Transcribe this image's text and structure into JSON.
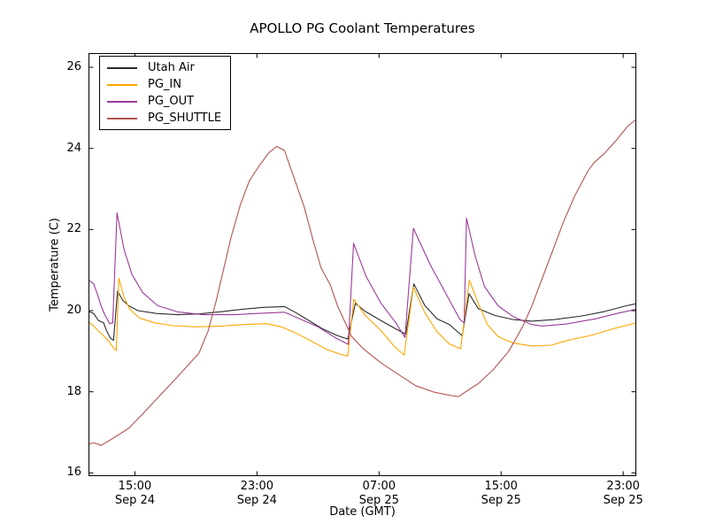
{
  "figure": {
    "title": "APOLLO PG Coolant Temperatures",
    "xlabel": "Date (GMT)",
    "ylabel": "Temperature (C)"
  },
  "chart_data": {
    "type": "line",
    "title": "APOLLO PG Coolant Temperatures",
    "xlabel": "Date (GMT)",
    "ylabel": "Temperature (C)",
    "x_unit": "hours_since_Sep24_0000_GMT",
    "xlim": [
      11.96,
      47.86
    ],
    "ylim": [
      15.92,
      26.35
    ],
    "grid": false,
    "legend_position": "upper left",
    "frame_color": "#000000",
    "x_ticks": [
      {
        "t": 15,
        "time": "15:00",
        "date": "Sep 24"
      },
      {
        "t": 23,
        "time": "23:00",
        "date": "Sep 24"
      },
      {
        "t": 31,
        "time": "07:00",
        "date": "Sep 25"
      },
      {
        "t": 39,
        "time": "15:00",
        "date": "Sep 25"
      },
      {
        "t": 47,
        "time": "23:00",
        "date": "Sep 25"
      }
    ],
    "y_ticks": [
      16,
      18,
      20,
      22,
      24,
      26
    ],
    "series": [
      {
        "name": "Utah Air",
        "color": "#2b2b2b",
        "points": [
          [
            11.96,
            19.98
          ],
          [
            12.3,
            19.93
          ],
          [
            12.6,
            19.76
          ],
          [
            12.95,
            19.7
          ],
          [
            13.15,
            19.5
          ],
          [
            13.4,
            19.32
          ],
          [
            13.6,
            19.27
          ],
          [
            13.86,
            20.48
          ],
          [
            14.2,
            20.26
          ],
          [
            14.6,
            20.12
          ],
          [
            15.2,
            20.0
          ],
          [
            16.4,
            19.93
          ],
          [
            17.8,
            19.9
          ],
          [
            19.2,
            19.92
          ],
          [
            20.8,
            19.98
          ],
          [
            22.2,
            20.04
          ],
          [
            23.4,
            20.08
          ],
          [
            24.8,
            20.1
          ],
          [
            25.5,
            19.96
          ],
          [
            26.3,
            19.78
          ],
          [
            27.3,
            19.55
          ],
          [
            28.3,
            19.38
          ],
          [
            28.95,
            19.3
          ],
          [
            29.45,
            20.18
          ],
          [
            30.1,
            19.98
          ],
          [
            31.1,
            19.76
          ],
          [
            32.1,
            19.55
          ],
          [
            32.75,
            19.42
          ],
          [
            33.28,
            20.66
          ],
          [
            34.0,
            20.13
          ],
          [
            34.8,
            19.8
          ],
          [
            35.6,
            19.66
          ],
          [
            36.45,
            19.38
          ],
          [
            36.9,
            20.42
          ],
          [
            37.5,
            20.05
          ],
          [
            38.6,
            19.88
          ],
          [
            39.8,
            19.78
          ],
          [
            41.0,
            19.74
          ],
          [
            42.5,
            19.78
          ],
          [
            44.3,
            19.87
          ],
          [
            45.8,
            19.98
          ],
          [
            47.2,
            20.12
          ],
          [
            47.86,
            20.17
          ]
        ]
      },
      {
        "name": "PG_IN",
        "color": "#ffa500",
        "points": [
          [
            11.96,
            19.73
          ],
          [
            12.3,
            19.62
          ],
          [
            12.6,
            19.5
          ],
          [
            12.95,
            19.38
          ],
          [
            13.3,
            19.24
          ],
          [
            13.6,
            19.08
          ],
          [
            13.78,
            19.02
          ],
          [
            13.95,
            20.8
          ],
          [
            14.3,
            20.32
          ],
          [
            14.7,
            20.02
          ],
          [
            15.3,
            19.82
          ],
          [
            16.3,
            19.7
          ],
          [
            17.5,
            19.63
          ],
          [
            19.0,
            19.6
          ],
          [
            20.7,
            19.62
          ],
          [
            22.3,
            19.66
          ],
          [
            23.6,
            19.68
          ],
          [
            24.6,
            19.6
          ],
          [
            25.6,
            19.44
          ],
          [
            26.6,
            19.24
          ],
          [
            27.6,
            19.04
          ],
          [
            28.5,
            18.92
          ],
          [
            28.95,
            18.88
          ],
          [
            29.35,
            20.28
          ],
          [
            30.1,
            19.88
          ],
          [
            31.1,
            19.52
          ],
          [
            32.0,
            19.12
          ],
          [
            32.65,
            18.9
          ],
          [
            33.25,
            20.58
          ],
          [
            34.0,
            19.95
          ],
          [
            34.8,
            19.48
          ],
          [
            35.6,
            19.18
          ],
          [
            36.35,
            19.06
          ],
          [
            36.92,
            20.75
          ],
          [
            37.5,
            20.18
          ],
          [
            38.1,
            19.66
          ],
          [
            38.8,
            19.36
          ],
          [
            39.8,
            19.2
          ],
          [
            41.0,
            19.13
          ],
          [
            42.3,
            19.15
          ],
          [
            43.3,
            19.26
          ],
          [
            45.0,
            19.4
          ],
          [
            46.3,
            19.55
          ],
          [
            47.86,
            19.7
          ]
        ]
      },
      {
        "name": "PG_OUT",
        "color": "#9a3a9a",
        "points": [
          [
            11.96,
            20.76
          ],
          [
            12.3,
            20.66
          ],
          [
            12.55,
            20.4
          ],
          [
            12.8,
            20.1
          ],
          [
            13.05,
            19.88
          ],
          [
            13.35,
            19.68
          ],
          [
            13.55,
            19.7
          ],
          [
            13.83,
            22.41
          ],
          [
            14.3,
            21.5
          ],
          [
            14.8,
            20.9
          ],
          [
            15.5,
            20.45
          ],
          [
            16.5,
            20.12
          ],
          [
            17.8,
            19.97
          ],
          [
            19.5,
            19.9
          ],
          [
            21.5,
            19.9
          ],
          [
            23.0,
            19.93
          ],
          [
            24.8,
            19.96
          ],
          [
            25.8,
            19.8
          ],
          [
            27.0,
            19.6
          ],
          [
            28.2,
            19.32
          ],
          [
            28.98,
            19.17
          ],
          [
            29.33,
            21.66
          ],
          [
            30.15,
            20.85
          ],
          [
            31.1,
            20.2
          ],
          [
            32.1,
            19.7
          ],
          [
            32.7,
            19.34
          ],
          [
            33.25,
            22.03
          ],
          [
            34.4,
            21.1
          ],
          [
            35.6,
            20.27
          ],
          [
            36.3,
            19.78
          ],
          [
            36.58,
            19.7
          ],
          [
            36.73,
            22.28
          ],
          [
            37.3,
            21.35
          ],
          [
            37.9,
            20.6
          ],
          [
            38.8,
            20.12
          ],
          [
            39.8,
            19.85
          ],
          [
            41.0,
            19.66
          ],
          [
            41.7,
            19.62
          ],
          [
            43.3,
            19.67
          ],
          [
            45.2,
            19.8
          ],
          [
            46.8,
            19.95
          ],
          [
            47.86,
            20.03
          ]
        ]
      },
      {
        "name": "PG_SHUTTLE",
        "color": "#b25450",
        "points": [
          [
            11.96,
            16.71
          ],
          [
            12.3,
            16.74
          ],
          [
            12.8,
            16.68
          ],
          [
            13.6,
            16.86
          ],
          [
            14.6,
            17.1
          ],
          [
            15.5,
            17.45
          ],
          [
            16.5,
            17.85
          ],
          [
            17.5,
            18.25
          ],
          [
            18.4,
            18.62
          ],
          [
            19.2,
            18.95
          ],
          [
            19.8,
            19.5
          ],
          [
            20.3,
            20.2
          ],
          [
            20.8,
            21.0
          ],
          [
            21.3,
            21.8
          ],
          [
            21.9,
            22.6
          ],
          [
            22.5,
            23.2
          ],
          [
            23.2,
            23.6
          ],
          [
            23.8,
            23.9
          ],
          [
            24.3,
            24.05
          ],
          [
            24.8,
            23.95
          ],
          [
            25.5,
            23.2
          ],
          [
            26.1,
            22.55
          ],
          [
            26.7,
            21.7
          ],
          [
            27.2,
            21.05
          ],
          [
            27.8,
            20.64
          ],
          [
            28.3,
            20.1
          ],
          [
            29.2,
            19.36
          ],
          [
            30.0,
            19.05
          ],
          [
            31.1,
            18.72
          ],
          [
            32.3,
            18.42
          ],
          [
            33.4,
            18.15
          ],
          [
            34.6,
            17.99
          ],
          [
            35.5,
            17.92
          ],
          [
            36.2,
            17.88
          ],
          [
            37.0,
            18.08
          ],
          [
            37.5,
            18.2
          ],
          [
            38.5,
            18.55
          ],
          [
            39.5,
            19.0
          ],
          [
            40.4,
            19.6
          ],
          [
            41.0,
            20.1
          ],
          [
            41.5,
            20.6
          ],
          [
            42.3,
            21.4
          ],
          [
            43.1,
            22.2
          ],
          [
            43.85,
            22.85
          ],
          [
            44.7,
            23.45
          ],
          [
            45.1,
            23.65
          ],
          [
            45.75,
            23.87
          ],
          [
            46.55,
            24.2
          ],
          [
            47.3,
            24.55
          ],
          [
            47.86,
            24.72
          ]
        ]
      }
    ]
  }
}
